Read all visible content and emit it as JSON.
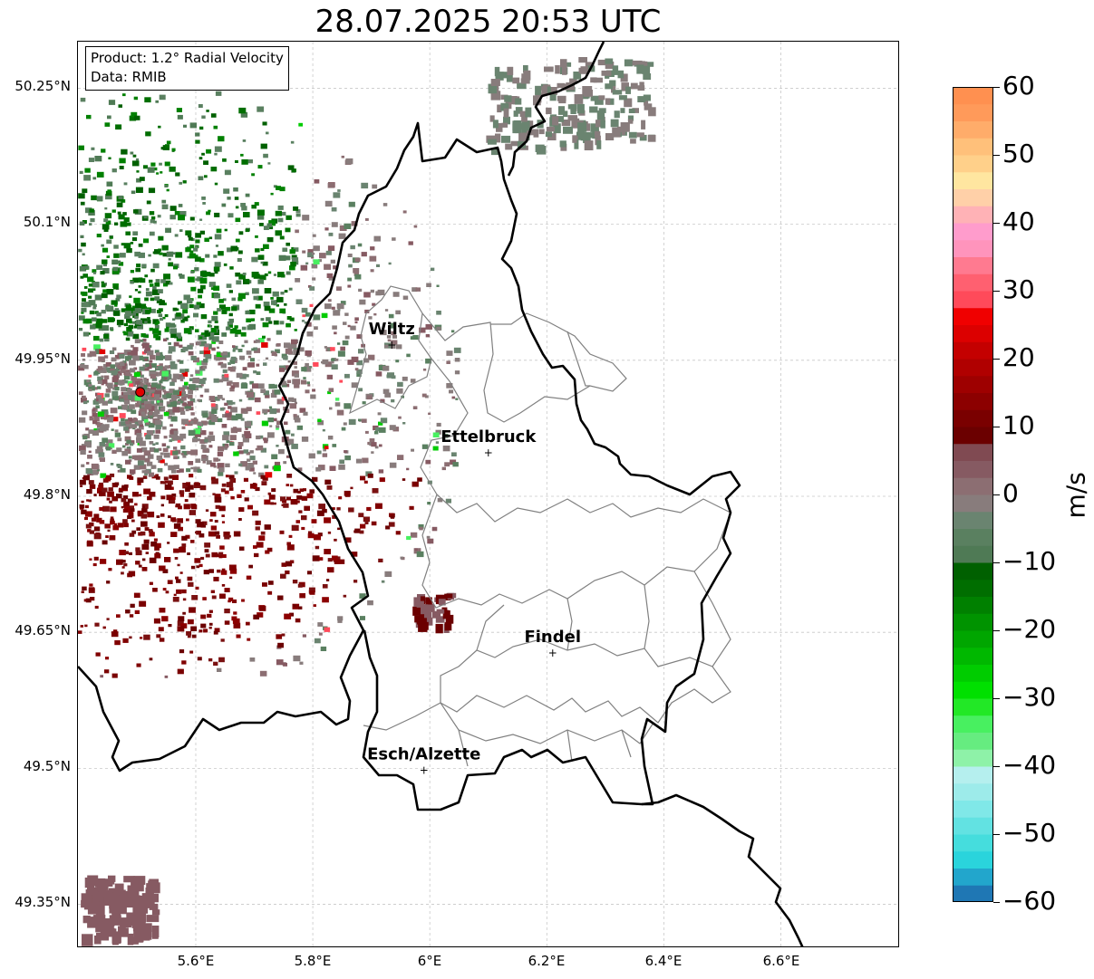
{
  "title": "28.07.2025 20:53 UTC",
  "info": {
    "line1": "Product: 1.2° Radial Velocity",
    "line2": "Data: RMIB"
  },
  "lat_labels": [
    "50.25°N",
    "50.1°N",
    "49.95°N",
    "49.8°N",
    "49.65°N",
    "49.5°N",
    "49.35°N"
  ],
  "lon_labels": [
    "5.6°E",
    "5.8°E",
    "6°E",
    "6.2°E",
    "6.4°E",
    "6.6°E"
  ],
  "cities": [
    {
      "name": "Wiltz",
      "lon": 5.935,
      "lat": 49.967
    },
    {
      "name": "Ettelbruck",
      "lon": 6.1,
      "lat": 49.848
    },
    {
      "name": "Findel",
      "lon": 6.21,
      "lat": 49.627
    },
    {
      "name": "Esch/Alzette",
      "lon": 5.99,
      "lat": 49.498
    }
  ],
  "radar_site": {
    "lon": 5.505,
    "lat": 49.915
  },
  "colorbar": {
    "unit": "m/s",
    "min": -60,
    "max": 60,
    "ticks": [
      "60",
      "50",
      "40",
      "30",
      "20",
      "10",
      "0",
      "−10",
      "−20",
      "−30",
      "−40",
      "−50",
      "−60"
    ],
    "colors": [
      "#1f77b4",
      "#22a6cc",
      "#2ad4dc",
      "#45dddd",
      "#62e2e2",
      "#80e8e8",
      "#9debea",
      "#b5efee",
      "#8ef2a8",
      "#66ec80",
      "#48f060",
      "#22e826",
      "#00e000",
      "#00cc00",
      "#00b800",
      "#00a600",
      "#009300",
      "#008000",
      "#006e00",
      "#006000",
      "#4f7a55",
      "#5a8060",
      "#6a8470",
      "#887c7c",
      "#8c6e72",
      "#865a62",
      "#804a52",
      "#6b0000",
      "#7a0000",
      "#8c0000",
      "#9e0000",
      "#b00000",
      "#c40000",
      "#dc0000",
      "#f00000",
      "#ff4a5a",
      "#ff6070",
      "#ff7a90",
      "#ff94bc",
      "#ff9ccc",
      "#ffb2b6",
      "#ffd0a8",
      "#ffe6a0",
      "#ffd08a",
      "#ffc07a",
      "#ffac6a",
      "#ff9a5a",
      "#ff9050"
    ]
  },
  "colors": {
    "border": "#000000",
    "canton": "#808080",
    "grid": "#c8c8c8"
  }
}
